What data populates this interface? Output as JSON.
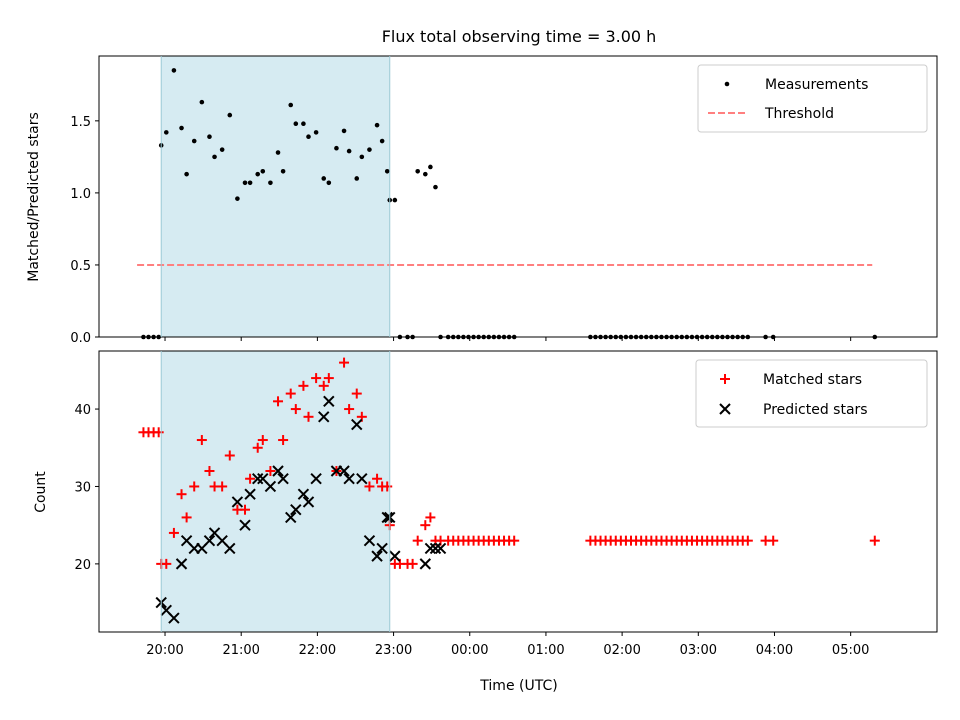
{
  "chart_data": [
    {
      "type": "scatter",
      "title": "Flux total observing time = 3.00 h",
      "xlabel": "",
      "ylabel": "Matched/Predicted stars",
      "ylim": [
        0,
        1.95
      ],
      "xlim": [
        "19:08",
        "06:08"
      ],
      "yticks": [
        "0.0",
        "0.5",
        "1.0",
        "1.5"
      ],
      "xticks_labels_shown": false,
      "observing_window": {
        "start": "19:57",
        "end": "22:57",
        "color": "#add8e6"
      },
      "legend": {
        "position": "top-right",
        "entries": [
          "Measurements",
          "Threshold"
        ]
      },
      "series": [
        {
          "name": "Measurements",
          "marker": "dot",
          "color": "#000000",
          "x": [
            "19:43",
            "19:47",
            "19:51",
            "19:55",
            "19:57",
            "20:01",
            "20:07",
            "20:13",
            "20:17",
            "20:23",
            "20:29",
            "20:35",
            "20:39",
            "20:45",
            "20:51",
            "20:57",
            "21:03",
            "21:07",
            "21:13",
            "21:17",
            "21:23",
            "21:29",
            "21:33",
            "21:39",
            "21:43",
            "21:49",
            "21:53",
            "21:59",
            "22:05",
            "22:09",
            "22:15",
            "22:21",
            "22:25",
            "22:31",
            "22:35",
            "22:41",
            "22:47",
            "22:51",
            "22:55",
            "22:57",
            "23:01",
            "23:05",
            "23:11",
            "23:15",
            "23:19",
            "23:25",
            "23:29",
            "23:33",
            "23:37",
            "23:43",
            "23:47",
            "23:51",
            "23:55",
            "23:59",
            "00:03",
            "00:07",
            "00:11",
            "00:15",
            "00:19",
            "00:23",
            "00:27",
            "00:31",
            "00:35",
            "01:35",
            "01:39",
            "01:43",
            "01:47",
            "01:51",
            "01:55",
            "01:59",
            "02:03",
            "02:07",
            "02:11",
            "02:15",
            "02:19",
            "02:23",
            "02:27",
            "02:31",
            "02:35",
            "02:39",
            "02:43",
            "02:47",
            "02:51",
            "02:55",
            "02:59",
            "03:03",
            "03:07",
            "03:11",
            "03:15",
            "03:19",
            "03:23",
            "03:27",
            "03:31",
            "03:35",
            "03:39",
            "03:53",
            "03:59",
            "05:19"
          ],
          "y": [
            0,
            0,
            0,
            0,
            1.33,
            1.42,
            1.85,
            1.45,
            1.13,
            1.36,
            1.63,
            1.39,
            1.25,
            1.3,
            1.54,
            0.96,
            1.07,
            1.07,
            1.13,
            1.15,
            1.07,
            1.28,
            1.15,
            1.61,
            1.48,
            1.48,
            1.39,
            1.42,
            1.1,
            1.07,
            1.31,
            1.43,
            1.29,
            1.1,
            1.25,
            1.3,
            1.47,
            1.36,
            1.15,
            0.95,
            0.95,
            0,
            0,
            0,
            1.15,
            1.13,
            1.18,
            1.04,
            0,
            0,
            0,
            0,
            0,
            0,
            0,
            0,
            0,
            0,
            0,
            0,
            0,
            0,
            0,
            0,
            0,
            0,
            0,
            0,
            0,
            0,
            0,
            0,
            0,
            0,
            0,
            0,
            0,
            0,
            0,
            0,
            0,
            0,
            0,
            0,
            0,
            0,
            0,
            0,
            0,
            0,
            0,
            0,
            0,
            0,
            0,
            0,
            0,
            0
          ]
        },
        {
          "name": "Threshold",
          "marker": "dashed-line",
          "color": "#ff7f7f",
          "x": [
            "19:38",
            "05:17"
          ],
          "y": [
            0.5,
            0.5
          ]
        }
      ]
    },
    {
      "type": "scatter",
      "title": "",
      "xlabel": "Time (UTC)",
      "ylabel": "Count",
      "ylim": [
        11.2,
        47.5
      ],
      "xlim": [
        "19:08",
        "06:08"
      ],
      "yticks": [
        "20",
        "30",
        "40"
      ],
      "xticks": [
        "20:00",
        "21:00",
        "22:00",
        "23:00",
        "00:00",
        "01:00",
        "02:00",
        "03:00",
        "04:00",
        "05:00"
      ],
      "observing_window": {
        "start": "19:57",
        "end": "22:57",
        "color": "#add8e6"
      },
      "legend": {
        "position": "top-right",
        "entries": [
          "Matched stars",
          "Predicted stars"
        ]
      },
      "series": [
        {
          "name": "Matched stars",
          "marker": "plus",
          "color": "#ff0000",
          "x": [
            "19:43",
            "19:47",
            "19:51",
            "19:55",
            "19:57",
            "20:01",
            "20:07",
            "20:13",
            "20:17",
            "20:23",
            "20:29",
            "20:35",
            "20:39",
            "20:45",
            "20:51",
            "20:57",
            "21:03",
            "21:07",
            "21:13",
            "21:17",
            "21:23",
            "21:29",
            "21:33",
            "21:39",
            "21:43",
            "21:49",
            "21:53",
            "21:59",
            "22:05",
            "22:09",
            "22:15",
            "22:21",
            "22:25",
            "22:31",
            "22:35",
            "22:41",
            "22:47",
            "22:51",
            "22:55",
            "22:57",
            "23:01",
            "23:05",
            "23:11",
            "23:15",
            "23:19",
            "23:25",
            "23:29",
            "23:33",
            "23:37",
            "23:43",
            "23:47",
            "23:51",
            "23:55",
            "23:59",
            "00:03",
            "00:07",
            "00:11",
            "00:15",
            "00:19",
            "00:23",
            "00:27",
            "00:31",
            "00:35",
            "01:35",
            "01:39",
            "01:43",
            "01:47",
            "01:51",
            "01:55",
            "01:59",
            "02:03",
            "02:07",
            "02:11",
            "02:15",
            "02:19",
            "02:23",
            "02:27",
            "02:31",
            "02:35",
            "02:39",
            "02:43",
            "02:47",
            "02:51",
            "02:55",
            "02:59",
            "03:03",
            "03:07",
            "03:11",
            "03:15",
            "03:19",
            "03:23",
            "03:27",
            "03:31",
            "03:35",
            "03:39",
            "03:53",
            "03:59",
            "05:19"
          ],
          "y": [
            37,
            37,
            37,
            37,
            20,
            20,
            24,
            29,
            26,
            30,
            36,
            32,
            30,
            30,
            34,
            27,
            27,
            31,
            35,
            36,
            32,
            41,
            36,
            42,
            40,
            43,
            39,
            44,
            43,
            44,
            32,
            46,
            40,
            42,
            39,
            30,
            31,
            30,
            30,
            25,
            20,
            20,
            20,
            20,
            23,
            25,
            26,
            23,
            23,
            23,
            23,
            23,
            23,
            23,
            23,
            23,
            23,
            23,
            23,
            23,
            23,
            23,
            23,
            23,
            23,
            23,
            23,
            23,
            23,
            23,
            23,
            23,
            23,
            23,
            23,
            23,
            23,
            23,
            23,
            23,
            23,
            23,
            23,
            23,
            23,
            23,
            23,
            23,
            23,
            23,
            23,
            23,
            23,
            23,
            23,
            23,
            23,
            23
          ]
        },
        {
          "name": "Predicted stars",
          "marker": "x",
          "color": "#000000",
          "x": [
            "19:57",
            "20:01",
            "20:07",
            "20:13",
            "20:17",
            "20:23",
            "20:29",
            "20:35",
            "20:39",
            "20:45",
            "20:51",
            "20:57",
            "21:03",
            "21:07",
            "21:13",
            "21:17",
            "21:23",
            "21:29",
            "21:33",
            "21:39",
            "21:43",
            "21:49",
            "21:53",
            "21:59",
            "22:05",
            "22:09",
            "22:15",
            "22:21",
            "22:25",
            "22:31",
            "22:35",
            "22:41",
            "22:47",
            "22:51",
            "22:55",
            "22:57",
            "23:01",
            "23:25",
            "23:29",
            "23:33",
            "23:37"
          ],
          "y": [
            15,
            14,
            13,
            20,
            23,
            22,
            22,
            23,
            24,
            23,
            22,
            28,
            25,
            29,
            31,
            31,
            30,
            32,
            31,
            26,
            27,
            29,
            28,
            31,
            39,
            41,
            32,
            32,
            31,
            38,
            31,
            23,
            21,
            22,
            26,
            26,
            21,
            20,
            22,
            22,
            22
          ]
        }
      ]
    }
  ]
}
